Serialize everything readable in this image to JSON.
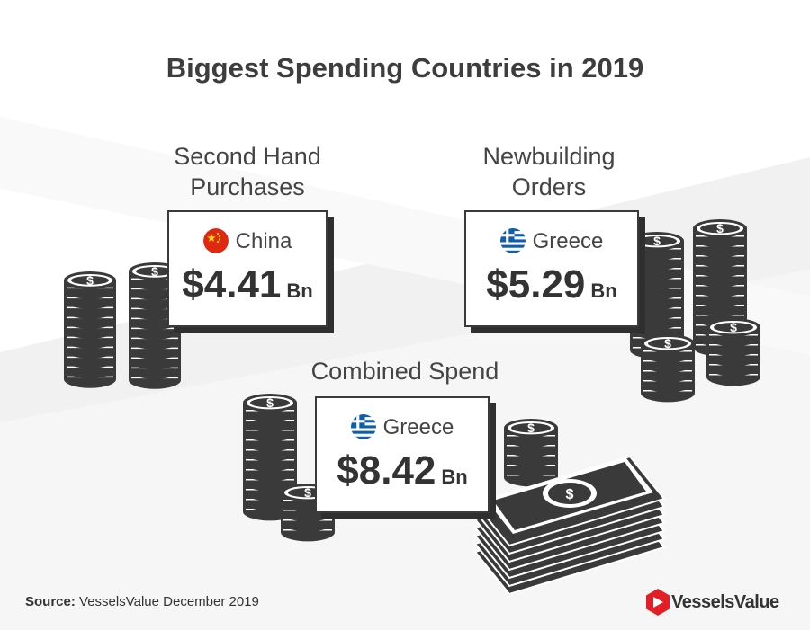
{
  "title": "Biggest Spending Countries in 2019",
  "sections": {
    "second_hand": {
      "heading_line1": "Second Hand",
      "heading_line2": "Purchases",
      "country": "China",
      "amount": "$4.41",
      "unit": "Bn"
    },
    "newbuilding": {
      "heading_line1": "Newbuilding",
      "heading_line2": "Orders",
      "country": "Greece",
      "amount": "$5.29",
      "unit": "Bn"
    },
    "combined": {
      "heading": "Combined Spend",
      "country": "Greece",
      "amount": "$8.42",
      "unit": "Bn"
    }
  },
  "footer": {
    "source_label": "Source:",
    "source_text": "VesselsValue December 2019",
    "brand": "VesselsValue"
  },
  "colors": {
    "text": "#3d3d3d",
    "coin": "#3a3a3a",
    "brand_red": "#e21f26"
  },
  "icons": [
    "china-flag-icon",
    "greece-flag-icon",
    "vesselsvalue-logo-icon",
    "coin-stack-icon",
    "banknote-stack-icon"
  ]
}
